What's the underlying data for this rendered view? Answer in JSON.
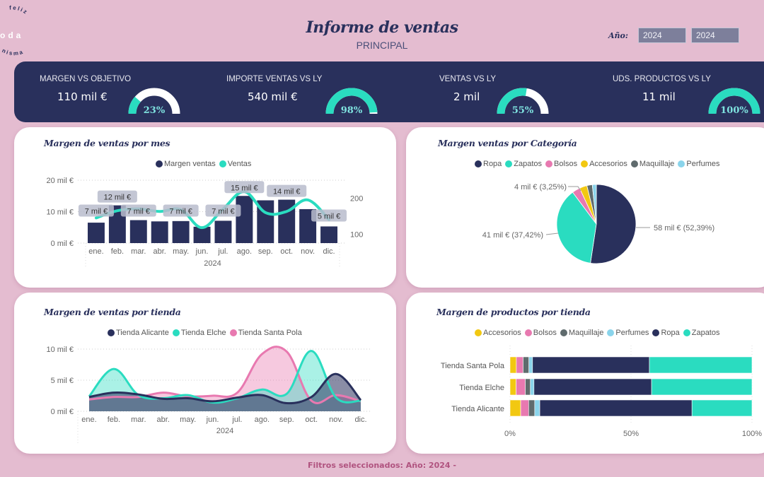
{
  "header": {
    "title": "Informe de ventas",
    "subtitle": "PRINCIPAL",
    "logo_text_top": "feliz",
    "logo_text_mid": "oda",
    "logo_text_bottom": "nisma",
    "year_label": "Año:",
    "year_from": "2024",
    "year_to": "2024"
  },
  "kpis": [
    {
      "label": "MARGEN VS OBJETIVO",
      "value": "110 mil €",
      "gauge_text": "23%",
      "gauge_pct": 0.23
    },
    {
      "label": "IMPORTE VENTAS VS LY",
      "value": "540 mil €",
      "gauge_text": "98%",
      "gauge_pct": 0.98
    },
    {
      "label": "VENTAS VS LY",
      "value": "2 mil",
      "gauge_text": "55%",
      "gauge_pct": 0.55
    },
    {
      "label": "UDS. PRODUCTOS VS LY",
      "value": "11 mil",
      "gauge_text": "100%",
      "gauge_pct": 1.0
    }
  ],
  "colors": {
    "navy": "#29305c",
    "teal": "#2adcc0",
    "pink": "#e879b0",
    "yellow": "#f2c811",
    "gray": "#5f6b6d",
    "lightblue": "#8ad4eb",
    "background": "#e4bcd0"
  },
  "footer": "Filtros seleccionados: Año: 2024 -",
  "chart_data": [
    {
      "type": "bar",
      "title": "Margen de ventas por mes",
      "categories": [
        "ene.",
        "feb.",
        "mar.",
        "abr.",
        "may.",
        "jun.",
        "jul.",
        "ago.",
        "sep.",
        "oct.",
        "nov.",
        "dic."
      ],
      "xlabel": "2024",
      "series": [
        {
          "name": "Margen ventas",
          "kind": "bar",
          "axis": "left",
          "values": [
            6.5,
            12,
            7.3,
            6.9,
            7,
            5.2,
            7.1,
            15,
            13.6,
            13.8,
            10.8,
            5.3
          ]
        },
        {
          "name": "Ventas",
          "kind": "line",
          "axis": "right",
          "values": [
            145,
            165,
            170,
            163,
            168,
            118,
            170,
            218,
            160,
            163,
            195,
            140
          ]
        }
      ],
      "data_labels": [
        "7 mil €",
        "12 mil €",
        "7 mil €",
        "",
        "7 mil €",
        "",
        "7 mil €",
        "15 mil €",
        "",
        "14 mil €",
        "",
        "5 mil €"
      ],
      "yticks_left": [
        "0 mil €",
        "10 mil €",
        "20 mil €"
      ],
      "ylim_left": [
        0,
        20
      ],
      "yticks_right": [
        "100",
        "200"
      ],
      "ylim_right": [
        75,
        250
      ],
      "legend": [
        "Margen ventas",
        "Ventas"
      ],
      "legend_position": "top-center",
      "grid": true
    },
    {
      "type": "pie",
      "title": "Margen ventas por Categoría",
      "categories": [
        "Ropa",
        "Zapatos",
        "Bolsos",
        "Accesorios",
        "Maquillaje",
        "Perfumes"
      ],
      "values": [
        52.39,
        37.42,
        3.25,
        3.1,
        2.2,
        1.64
      ],
      "slice_labels": [
        {
          "category": "Ropa",
          "text": "58 mil € (52,39%)"
        },
        {
          "category": "Zapatos",
          "text": "41 mil € (37,42%)"
        },
        {
          "category": "Bolsos",
          "text": "4 mil € (3,25%)"
        }
      ],
      "legend_position": "top-center"
    },
    {
      "type": "area",
      "title": "Margen de ventas por tienda",
      "x": [
        "ene.",
        "feb.",
        "mar.",
        "abr.",
        "may.",
        "jun.",
        "jul.",
        "ago.",
        "sep.",
        "oct.",
        "nov.",
        "dic."
      ],
      "xlabel": "2024",
      "series": [
        {
          "name": "Tienda Alicante",
          "values": [
            2.3,
            3.0,
            2.7,
            2.0,
            2.1,
            1.6,
            2.2,
            2.6,
            1.3,
            2.3,
            6.0,
            1.8
          ]
        },
        {
          "name": "Tienda Elche",
          "values": [
            2.4,
            6.8,
            2.6,
            2.1,
            2.6,
            1.4,
            2.1,
            3.5,
            2.8,
            9.7,
            2.2,
            1.7
          ]
        },
        {
          "name": "Tienda Santa Pola",
          "values": [
            1.9,
            2.3,
            2.3,
            3.0,
            2.4,
            2.5,
            3.0,
            9.2,
            9.6,
            1.7,
            2.6,
            1.6
          ]
        }
      ],
      "yticks": [
        "0 mil €",
        "5 mil €",
        "10 mil €"
      ],
      "ylim": [
        0,
        10
      ],
      "legend_position": "top-center",
      "grid": true
    },
    {
      "type": "bar",
      "orientation": "horizontal-stacked-100",
      "title": "Margen de productos por tienda",
      "categories": [
        "Tienda Santa Pola",
        "Tienda Elche",
        "Tienda Alicante"
      ],
      "series": [
        {
          "name": "Accesorios",
          "values": [
            2.6,
            2.5,
            4.4
          ]
        },
        {
          "name": "Bolsos",
          "values": [
            2.8,
            3.8,
            3.3
          ]
        },
        {
          "name": "Maquillaje",
          "values": [
            2.4,
            2.1,
            2.5
          ]
        },
        {
          "name": "Perfumes",
          "values": [
            1.5,
            1.5,
            2.1
          ]
        },
        {
          "name": "Ropa",
          "values": [
            48.3,
            48.6,
            62.9
          ]
        },
        {
          "name": "Zapatos",
          "values": [
            42.4,
            41.5,
            24.8
          ]
        }
      ],
      "xticks": [
        "0%",
        "50%",
        "100%"
      ],
      "xlim": [
        0,
        100
      ],
      "legend_position": "top-center"
    }
  ]
}
